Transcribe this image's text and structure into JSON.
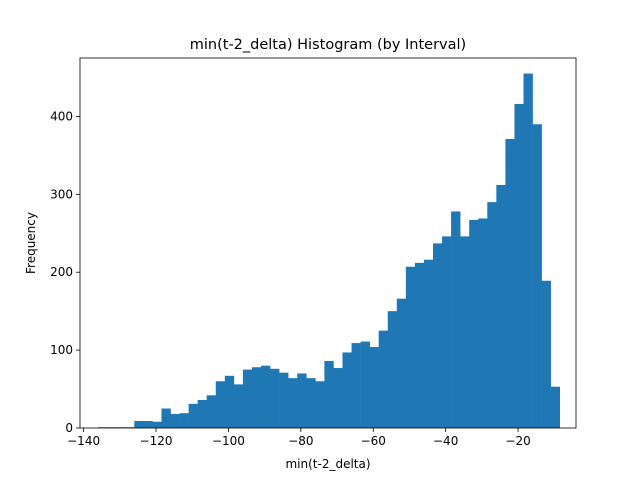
{
  "chart_data": {
    "type": "bar",
    "title": "min(t-2_delta) Histogram (by Interval)",
    "xlabel": "min(t-2_delta)",
    "ylabel": "Frequency",
    "xlim": [
      -141,
      -4
    ],
    "ylim": [
      0,
      475
    ],
    "x_ticks": [
      -140,
      -120,
      -100,
      -80,
      -60,
      -40,
      -20
    ],
    "y_ticks": [
      0,
      100,
      200,
      300,
      400
    ],
    "grid": false,
    "color": "#1f77b4",
    "bin_start": -136,
    "bin_width": 2.5,
    "values": [
      1,
      1,
      1,
      1,
      9,
      9,
      8,
      25,
      18,
      19,
      31,
      36,
      42,
      60,
      67,
      56,
      75,
      78,
      80,
      76,
      71,
      64,
      70,
      64,
      60,
      86,
      77,
      97,
      109,
      111,
      104,
      125,
      150,
      166,
      207,
      212,
      216,
      237,
      246,
      278,
      246,
      267,
      269,
      290,
      312,
      371,
      416,
      455,
      390,
      189,
      53
    ]
  }
}
